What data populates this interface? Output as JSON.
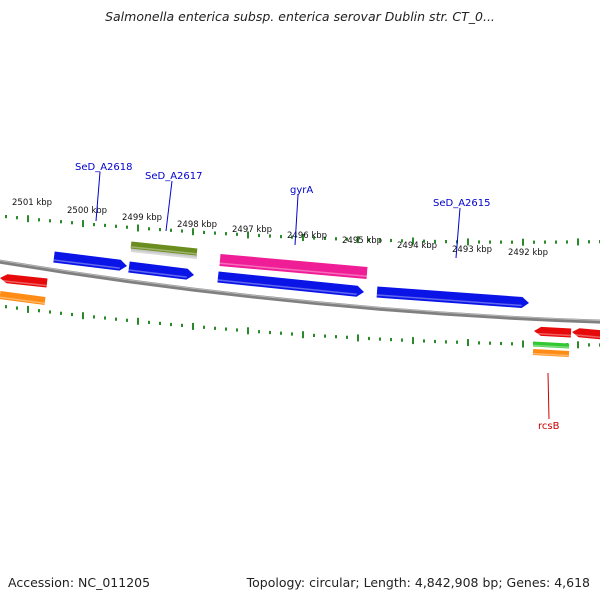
{
  "header": {
    "title": "Salmonella enterica subsp. enterica serovar Dublin str. CT_0..."
  },
  "footer": {
    "accession": "Accession: NC_011205",
    "topology": "Topology: circular; Length: 4,842,908 bp; Genes: 4,618"
  },
  "map": {
    "backbone_color": "#808080",
    "tick_color": "#2a8a2a",
    "tick_labels": [
      "2501 kbp",
      "2500 kbp",
      "2499 kbp",
      "2498 kbp",
      "2497 kbp",
      "2496 kbp",
      "2495 kbp",
      "2494 kbp",
      "2493 kbp",
      "2492 kbp"
    ],
    "gene_labels": [
      {
        "text": "SeD_A2618",
        "color": "#0000cc"
      },
      {
        "text": "SeD_A2617",
        "color": "#0000cc"
      },
      {
        "text": "gyrA",
        "color": "#0000cc"
      },
      {
        "text": "SeD_A2615",
        "color": "#0000cc"
      },
      {
        "text": "rcsB",
        "color": "#cc0000"
      }
    ],
    "feature_colors": {
      "blue": "#0a14e6",
      "pink": "#f01e96",
      "olive": "#6b8c1e",
      "red": "#e60a0a",
      "orange": "#ff8c14",
      "green": "#32c832",
      "grey": "#c8c8c8"
    }
  }
}
